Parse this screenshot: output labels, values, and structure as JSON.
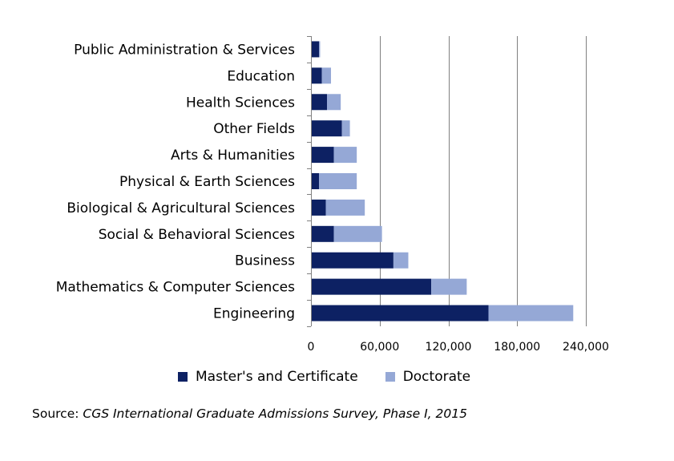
{
  "chart_data": {
    "type": "bar",
    "orientation": "horizontal",
    "stacked": true,
    "categories": [
      "Public Administration & Services",
      "Education",
      "Health Sciences",
      "Other Fields",
      "Arts & Humanities",
      "Physical & Earth Sciences",
      "Biological & Agricultural Sciences",
      "Social & Behavioral Sciences",
      "Business",
      "Mathematics & Computer Sciences",
      "Engineering"
    ],
    "series": [
      {
        "name": "Master's and Certificate",
        "color": "#0d2163",
        "values": [
          7000,
          9500,
          14000,
          27000,
          20000,
          7000,
          13000,
          20000,
          72000,
          105000,
          155000
        ]
      },
      {
        "name": "Doctorate",
        "color": "#95a8d6",
        "values": [
          1000,
          8000,
          12000,
          7000,
          20000,
          33000,
          34000,
          42000,
          13000,
          31000,
          74000
        ]
      }
    ],
    "xlim": [
      0,
      240000
    ],
    "xticks": [
      0,
      60000,
      120000,
      180000,
      240000
    ],
    "xtick_labels": [
      "0",
      "60,000",
      "120,000",
      "180,000",
      "240,000"
    ],
    "grid": "vertical",
    "legend": "bottom"
  },
  "source": {
    "prefix": "Source: ",
    "citation": "CGS International Graduate Admissions Survey, Phase I, 2015"
  }
}
